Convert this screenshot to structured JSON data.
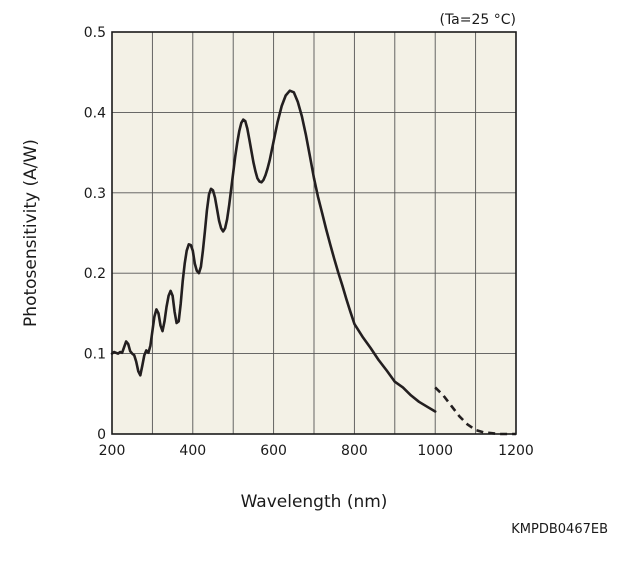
{
  "chart_data": {
    "type": "line",
    "annotation": "(Ta=25 °C)",
    "figure_code": "KMPDB0467EB",
    "xlabel": "Wavelength (nm)",
    "ylabel": "Photosensitivity (A/W)",
    "xlim": [
      200,
      1200
    ],
    "ylim": [
      0,
      0.5
    ],
    "xticks": [
      200,
      400,
      600,
      800,
      1000,
      1200
    ],
    "xtick_labels": [
      "200",
      "400",
      "600",
      "800",
      "1000",
      "1200"
    ],
    "yticks": [
      0,
      0.1,
      0.2,
      0.3,
      0.4,
      0.5
    ],
    "ytick_labels": [
      "0",
      "0.1",
      "0.2",
      "0.3",
      "0.4",
      "0.5"
    ],
    "grid": true,
    "grid_minor_x": [
      300,
      500,
      700,
      900,
      1100
    ],
    "colors": {
      "plot_bg": "#f3f1e6",
      "line": "#231f20",
      "grid": "#555555"
    },
    "series": [
      {
        "style": "solid",
        "x": [
          200,
          205,
          210,
          215,
          220,
          225,
          230,
          235,
          240,
          245,
          250,
          255,
          260,
          265,
          270,
          275,
          280,
          285,
          290,
          295,
          300,
          305,
          310,
          315,
          320,
          325,
          330,
          335,
          340,
          345,
          350,
          355,
          360,
          365,
          370,
          375,
          380,
          385,
          390,
          395,
          400,
          405,
          410,
          415,
          420,
          425,
          430,
          435,
          440,
          445,
          450,
          455,
          460,
          465,
          470,
          475,
          480,
          485,
          490,
          495,
          500,
          505,
          510,
          515,
          520,
          525,
          530,
          535,
          540,
          545,
          550,
          555,
          560,
          565,
          570,
          575,
          580,
          585,
          590,
          595,
          600,
          610,
          620,
          630,
          640,
          650,
          660,
          670,
          680,
          690,
          700,
          710,
          720,
          730,
          740,
          750,
          760,
          770,
          780,
          790,
          800,
          820,
          840,
          860,
          880,
          900,
          920,
          940,
          960,
          980,
          1000
        ],
        "y": [
          0.1,
          0.102,
          0.101,
          0.1,
          0.102,
          0.101,
          0.108,
          0.115,
          0.112,
          0.103,
          0.1,
          0.098,
          0.09,
          0.078,
          0.073,
          0.085,
          0.098,
          0.104,
          0.101,
          0.11,
          0.128,
          0.146,
          0.155,
          0.15,
          0.135,
          0.128,
          0.14,
          0.158,
          0.172,
          0.178,
          0.172,
          0.152,
          0.138,
          0.14,
          0.162,
          0.19,
          0.212,
          0.228,
          0.236,
          0.235,
          0.228,
          0.212,
          0.203,
          0.2,
          0.208,
          0.228,
          0.252,
          0.278,
          0.298,
          0.305,
          0.303,
          0.294,
          0.28,
          0.265,
          0.256,
          0.252,
          0.256,
          0.267,
          0.285,
          0.305,
          0.325,
          0.345,
          0.362,
          0.377,
          0.387,
          0.391,
          0.389,
          0.38,
          0.366,
          0.352,
          0.338,
          0.327,
          0.318,
          0.314,
          0.313,
          0.316,
          0.322,
          0.33,
          0.34,
          0.352,
          0.364,
          0.388,
          0.408,
          0.421,
          0.427,
          0.425,
          0.413,
          0.395,
          0.372,
          0.345,
          0.318,
          0.295,
          0.275,
          0.255,
          0.236,
          0.218,
          0.201,
          0.185,
          0.168,
          0.152,
          0.137,
          0.121,
          0.107,
          0.092,
          0.079,
          0.065,
          0.058,
          0.048,
          0.04,
          0.034,
          0.028
        ]
      },
      {
        "style": "dashed",
        "x": [
          1000,
          1020,
          1040,
          1060,
          1080,
          1100,
          1120,
          1140,
          1160,
          1180,
          1200
        ],
        "y": [
          0.058,
          0.048,
          0.035,
          0.022,
          0.012,
          0.005,
          0.002,
          0.001,
          0.0,
          0.0,
          0.0
        ]
      }
    ]
  }
}
